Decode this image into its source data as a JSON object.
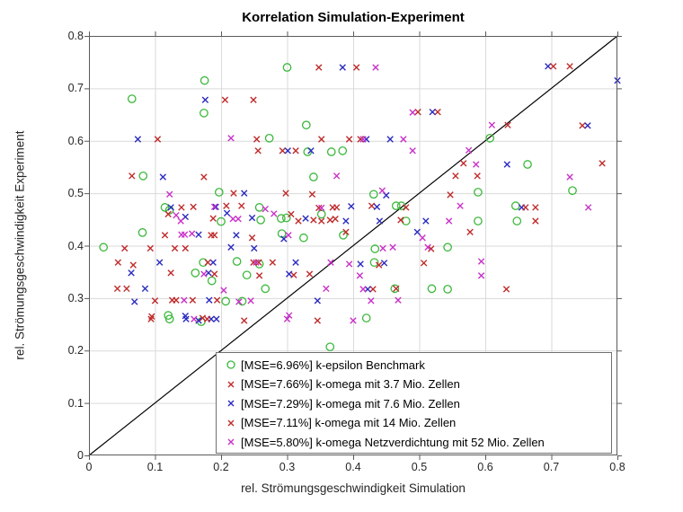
{
  "chart_data": {
    "type": "scatter",
    "title": "Korrelation Simulation-Experiment",
    "xlabel": "rel. Strömungsgeschwindigkeit Simulation",
    "ylabel": "rel. Strömungsgeschwindigkeit Experiment",
    "xlim": [
      0,
      0.8
    ],
    "ylim": [
      0,
      0.8
    ],
    "xticks": [
      0,
      0.1,
      0.2,
      0.3,
      0.4,
      0.5,
      0.6,
      0.7,
      0.8
    ],
    "yticks": [
      0,
      0.1,
      0.2,
      0.3,
      0.4,
      0.5,
      0.6,
      0.7,
      0.8
    ],
    "grid": true,
    "grid_color": "#dadada",
    "axis_color": "#5a5a5a",
    "identity_line": {
      "from": [
        0,
        0
      ],
      "to": [
        0.8,
        0.8
      ],
      "color": "#000000"
    },
    "legend_position": "south-east-inside",
    "series": [
      {
        "name": "[MSE=6.96%] k-epsilon Benchmark",
        "marker": "circle",
        "color": "#3bb83b",
        "points": [
          [
            0.175,
            0.715
          ],
          [
            0.065,
            0.68
          ],
          [
            0.174,
            0.653
          ],
          [
            0.3,
            0.74
          ],
          [
            0.082,
            0.533
          ],
          [
            0.273,
            0.605
          ],
          [
            0.329,
            0.63
          ],
          [
            0.34,
            0.531
          ],
          [
            0.367,
            0.579
          ],
          [
            0.384,
            0.581
          ],
          [
            0.331,
            0.579
          ],
          [
            0.607,
            0.605
          ],
          [
            0.664,
            0.555
          ],
          [
            0.197,
            0.502
          ],
          [
            0.115,
            0.473
          ],
          [
            0.122,
            0.468
          ],
          [
            0.258,
            0.473
          ],
          [
            0.2,
            0.446
          ],
          [
            0.26,
            0.449
          ],
          [
            0.081,
            0.425
          ],
          [
            0.022,
            0.397
          ],
          [
            0.173,
            0.368
          ],
          [
            0.224,
            0.37
          ],
          [
            0.258,
            0.365
          ],
          [
            0.161,
            0.348
          ],
          [
            0.239,
            0.344
          ],
          [
            0.186,
            0.333
          ],
          [
            0.207,
            0.294
          ],
          [
            0.232,
            0.294
          ],
          [
            0.12,
            0.267
          ],
          [
            0.267,
            0.318
          ],
          [
            0.291,
            0.452
          ],
          [
            0.299,
            0.453
          ],
          [
            0.352,
            0.46
          ],
          [
            0.292,
            0.423
          ],
          [
            0.325,
            0.415
          ],
          [
            0.385,
            0.42
          ],
          [
            0.431,
            0.498
          ],
          [
            0.465,
            0.476
          ],
          [
            0.473,
            0.476
          ],
          [
            0.48,
            0.447
          ],
          [
            0.432,
            0.368
          ],
          [
            0.433,
            0.394
          ],
          [
            0.463,
            0.318
          ],
          [
            0.519,
            0.318
          ],
          [
            0.543,
            0.317
          ],
          [
            0.543,
            0.397
          ],
          [
            0.589,
            0.502
          ],
          [
            0.732,
            0.505
          ],
          [
            0.589,
            0.447
          ],
          [
            0.646,
            0.476
          ],
          [
            0.648,
            0.447
          ],
          [
            0.17,
            0.255
          ],
          [
            0.122,
            0.26
          ],
          [
            0.42,
            0.262
          ],
          [
            0.365,
            0.207
          ]
        ]
      },
      {
        "name": "[MSE=7.66%] k-omega mit 3.7 Mio. Zellen",
        "marker": "x",
        "color": "#c02b2b",
        "points": [
          [
            0.206,
            0.678
          ],
          [
            0.104,
            0.603
          ],
          [
            0.256,
            0.581
          ],
          [
            0.174,
            0.531
          ],
          [
            0.405,
            0.74
          ],
          [
            0.528,
            0.655
          ],
          [
            0.394,
            0.603
          ],
          [
            0.293,
            0.581
          ],
          [
            0.728,
            0.742
          ],
          [
            0.747,
            0.629
          ],
          [
            0.777,
            0.557
          ],
          [
            0.588,
            0.533
          ],
          [
            0.219,
            0.5
          ],
          [
            0.158,
            0.474
          ],
          [
            0.231,
            0.476
          ],
          [
            0.188,
            0.452
          ],
          [
            0.185,
            0.42
          ],
          [
            0.247,
            0.415
          ],
          [
            0.093,
            0.395
          ],
          [
            0.146,
            0.395
          ],
          [
            0.067,
            0.363
          ],
          [
            0.249,
            0.368
          ],
          [
            0.124,
            0.348
          ],
          [
            0.258,
            0.343
          ],
          [
            0.057,
            0.318
          ],
          [
            0.126,
            0.296
          ],
          [
            0.157,
            0.296
          ],
          [
            0.095,
            0.265
          ],
          [
            0.172,
            0.262
          ],
          [
            0.235,
            0.257
          ],
          [
            0.338,
            0.498
          ],
          [
            0.317,
            0.447
          ],
          [
            0.348,
            0.472
          ],
          [
            0.365,
            0.449
          ],
          [
            0.369,
            0.473
          ],
          [
            0.428,
            0.476
          ],
          [
            0.472,
            0.449
          ],
          [
            0.439,
            0.363
          ],
          [
            0.31,
            0.344
          ],
          [
            0.43,
            0.317
          ],
          [
            0.346,
            0.257
          ],
          [
            0.547,
            0.497
          ],
          [
            0.676,
            0.473
          ],
          [
            0.577,
            0.426
          ],
          [
            0.518,
            0.394
          ]
        ]
      },
      {
        "name": "[MSE=7.29%] k-omega mit 7.6 Mio. Zellen",
        "marker": "x",
        "color": "#2b2bc0",
        "points": [
          [
            0.176,
            0.678
          ],
          [
            0.074,
            0.603
          ],
          [
            0.112,
            0.531
          ],
          [
            0.384,
            0.74
          ],
          [
            0.52,
            0.655
          ],
          [
            0.42,
            0.603
          ],
          [
            0.456,
            0.603
          ],
          [
            0.301,
            0.581
          ],
          [
            0.336,
            0.581
          ],
          [
            0.695,
            0.742
          ],
          [
            0.8,
            0.715
          ],
          [
            0.755,
            0.629
          ],
          [
            0.633,
            0.555
          ],
          [
            0.235,
            0.5
          ],
          [
            0.124,
            0.473
          ],
          [
            0.192,
            0.474
          ],
          [
            0.146,
            0.455
          ],
          [
            0.209,
            0.462
          ],
          [
            0.247,
            0.453
          ],
          [
            0.166,
            0.421
          ],
          [
            0.223,
            0.42
          ],
          [
            0.215,
            0.397
          ],
          [
            0.25,
            0.395
          ],
          [
            0.107,
            0.368
          ],
          [
            0.188,
            0.368
          ],
          [
            0.064,
            0.348
          ],
          [
            0.181,
            0.348
          ],
          [
            0.085,
            0.318
          ],
          [
            0.069,
            0.293
          ],
          [
            0.182,
            0.296
          ],
          [
            0.146,
            0.266
          ],
          [
            0.147,
            0.26
          ],
          [
            0.166,
            0.257
          ],
          [
            0.185,
            0.26
          ],
          [
            0.193,
            0.26
          ],
          [
            0.45,
            0.496
          ],
          [
            0.328,
            0.452
          ],
          [
            0.397,
            0.475
          ],
          [
            0.389,
            0.447
          ],
          [
            0.44,
            0.447
          ],
          [
            0.436,
            0.474
          ],
          [
            0.51,
            0.447
          ],
          [
            0.295,
            0.413
          ],
          [
            0.411,
            0.365
          ],
          [
            0.447,
            0.367
          ],
          [
            0.303,
            0.346
          ],
          [
            0.313,
            0.368
          ],
          [
            0.422,
            0.317
          ],
          [
            0.346,
            0.295
          ],
          [
            0.497,
            0.426
          ],
          [
            0.655,
            0.473
          ]
        ]
      },
      {
        "name": "[MSE=7.11%] k-omega mit 14 Mio. Zellen",
        "marker": "x",
        "color": "#c02b2b",
        "points": [
          [
            0.249,
            0.678
          ],
          [
            0.254,
            0.603
          ],
          [
            0.065,
            0.533
          ],
          [
            0.348,
            0.74
          ],
          [
            0.498,
            0.655
          ],
          [
            0.352,
            0.603
          ],
          [
            0.411,
            0.603
          ],
          [
            0.313,
            0.581
          ],
          [
            0.703,
            0.742
          ],
          [
            0.634,
            0.63
          ],
          [
            0.567,
            0.557
          ],
          [
            0.555,
            0.533
          ],
          [
            0.14,
            0.473
          ],
          [
            0.208,
            0.476
          ],
          [
            0.12,
            0.46
          ],
          [
            0.115,
            0.42
          ],
          [
            0.19,
            0.42
          ],
          [
            0.054,
            0.395
          ],
          [
            0.13,
            0.395
          ],
          [
            0.044,
            0.368
          ],
          [
            0.18,
            0.368
          ],
          [
            0.257,
            0.368
          ],
          [
            0.19,
            0.346
          ],
          [
            0.043,
            0.318
          ],
          [
            0.1,
            0.295
          ],
          [
            0.132,
            0.296
          ],
          [
            0.194,
            0.296
          ],
          [
            0.094,
            0.26
          ],
          [
            0.179,
            0.26
          ],
          [
            0.298,
            0.5
          ],
          [
            0.306,
            0.46
          ],
          [
            0.34,
            0.449
          ],
          [
            0.352,
            0.447
          ],
          [
            0.373,
            0.451
          ],
          [
            0.375,
            0.473
          ],
          [
            0.48,
            0.473
          ],
          [
            0.389,
            0.426
          ],
          [
            0.507,
            0.367
          ],
          [
            0.334,
            0.346
          ],
          [
            0.465,
            0.318
          ],
          [
            0.278,
            0.368
          ],
          [
            0.661,
            0.473
          ],
          [
            0.676,
            0.447
          ],
          [
            0.632,
            0.317
          ]
        ]
      },
      {
        "name": "[MSE=5.80%] k-omega Netzverdichtung mit 52 Mio. Zellen",
        "marker": "x",
        "color": "#c832c8",
        "points": [
          [
            0.215,
            0.605
          ],
          [
            0.434,
            0.74
          ],
          [
            0.49,
            0.654
          ],
          [
            0.415,
            0.603
          ],
          [
            0.476,
            0.603
          ],
          [
            0.49,
            0.581
          ],
          [
            0.375,
            0.533
          ],
          [
            0.61,
            0.63
          ],
          [
            0.575,
            0.582
          ],
          [
            0.586,
            0.555
          ],
          [
            0.728,
            0.531
          ],
          [
            0.122,
            0.498
          ],
          [
            0.19,
            0.474
          ],
          [
            0.267,
            0.47
          ],
          [
            0.132,
            0.458
          ],
          [
            0.139,
            0.447
          ],
          [
            0.218,
            0.451
          ],
          [
            0.226,
            0.451
          ],
          [
            0.14,
            0.421
          ],
          [
            0.145,
            0.421
          ],
          [
            0.156,
            0.423
          ],
          [
            0.253,
            0.368
          ],
          [
            0.174,
            0.346
          ],
          [
            0.204,
            0.315
          ],
          [
            0.144,
            0.296
          ],
          [
            0.227,
            0.293
          ],
          [
            0.245,
            0.295
          ],
          [
            0.159,
            0.26
          ],
          [
            0.3,
            0.26
          ],
          [
            0.4,
            0.257
          ],
          [
            0.303,
            0.267
          ],
          [
            0.444,
            0.505
          ],
          [
            0.352,
            0.472
          ],
          [
            0.28,
            0.461
          ],
          [
            0.302,
            0.42
          ],
          [
            0.505,
            0.415
          ],
          [
            0.445,
            0.395
          ],
          [
            0.46,
            0.397
          ],
          [
            0.513,
            0.397
          ],
          [
            0.366,
            0.368
          ],
          [
            0.394,
            0.365
          ],
          [
            0.41,
            0.343
          ],
          [
            0.359,
            0.318
          ],
          [
            0.415,
            0.317
          ],
          [
            0.427,
            0.295
          ],
          [
            0.468,
            0.296
          ],
          [
            0.545,
            0.447
          ],
          [
            0.562,
            0.476
          ],
          [
            0.756,
            0.473
          ],
          [
            0.594,
            0.37
          ],
          [
            0.594,
            0.343
          ]
        ]
      }
    ]
  }
}
